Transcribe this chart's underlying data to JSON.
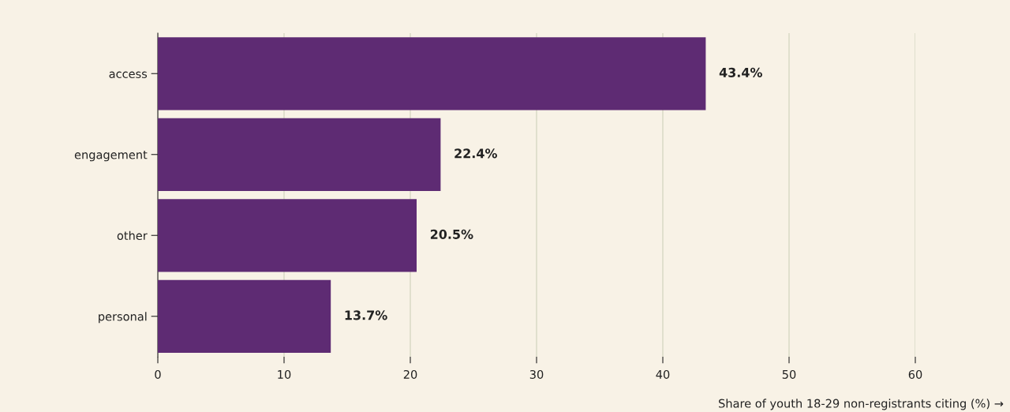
{
  "chart_data": {
    "type": "bar",
    "orientation": "horizontal",
    "categories": [
      "access",
      "engagement",
      "other",
      "personal"
    ],
    "values": [
      43.4,
      22.4,
      20.5,
      13.7
    ],
    "value_labels": [
      "43.4%",
      "22.4%",
      "20.5%",
      "13.7%"
    ],
    "color": "#5e2b73",
    "xlabel": "Share of youth 18-29 non-registrants citing (%) →",
    "xlim": [
      0,
      60
    ],
    "xticks": [
      0,
      10,
      20,
      30,
      40,
      50,
      60
    ],
    "grid": "x"
  }
}
